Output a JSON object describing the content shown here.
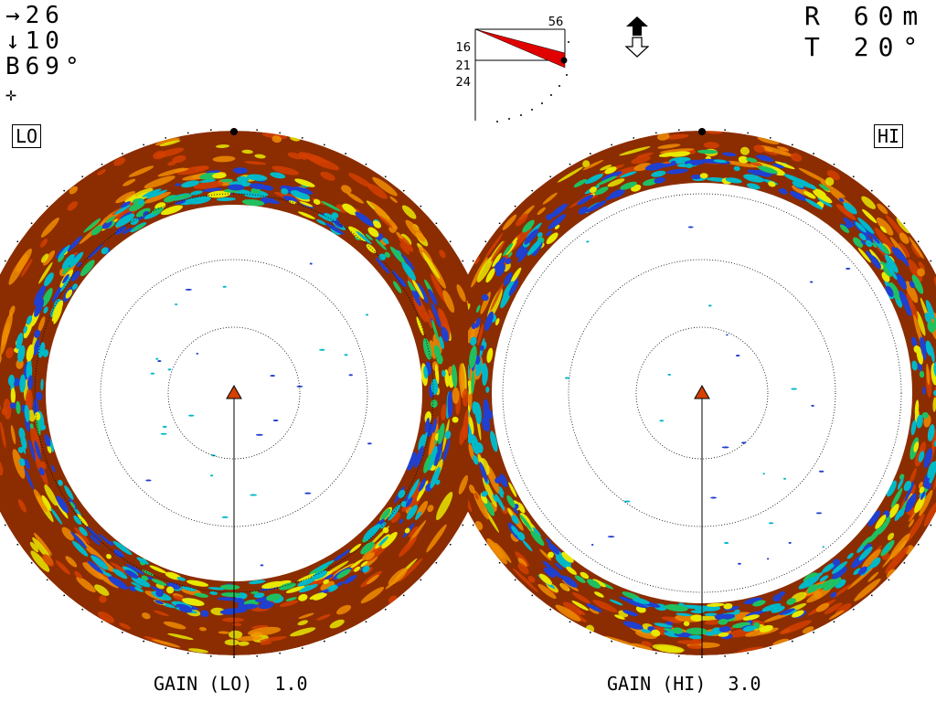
{
  "readouts": {
    "course": "→26",
    "depth": "↓10",
    "bearing": "B69°",
    "cursor_symbol": "✛"
  },
  "range": "R 60m",
  "tilt": "T 20°",
  "tilt_indicator": {
    "top_value": "56",
    "labels": [
      "16",
      "21",
      "24"
    ]
  },
  "modes": {
    "left": "LO",
    "right": "HI"
  },
  "gain": {
    "left": "GAIN (LO)  1.0",
    "right": "GAIN (HI)  3.0"
  },
  "icons": [
    "up-arrow-icon",
    "down-arrow-icon",
    "cursor-cross-icon",
    "own-ship-icon"
  ],
  "colors": {
    "echo_strong": "#8b2d00",
    "echo_red": "#d44000",
    "echo_orange": "#f08c00",
    "echo_yellow": "#e8e800",
    "echo_green": "#20c060",
    "echo_cyan": "#00b8c8",
    "echo_blue": "#2040d0",
    "tilt_beam": "#e00000"
  }
}
